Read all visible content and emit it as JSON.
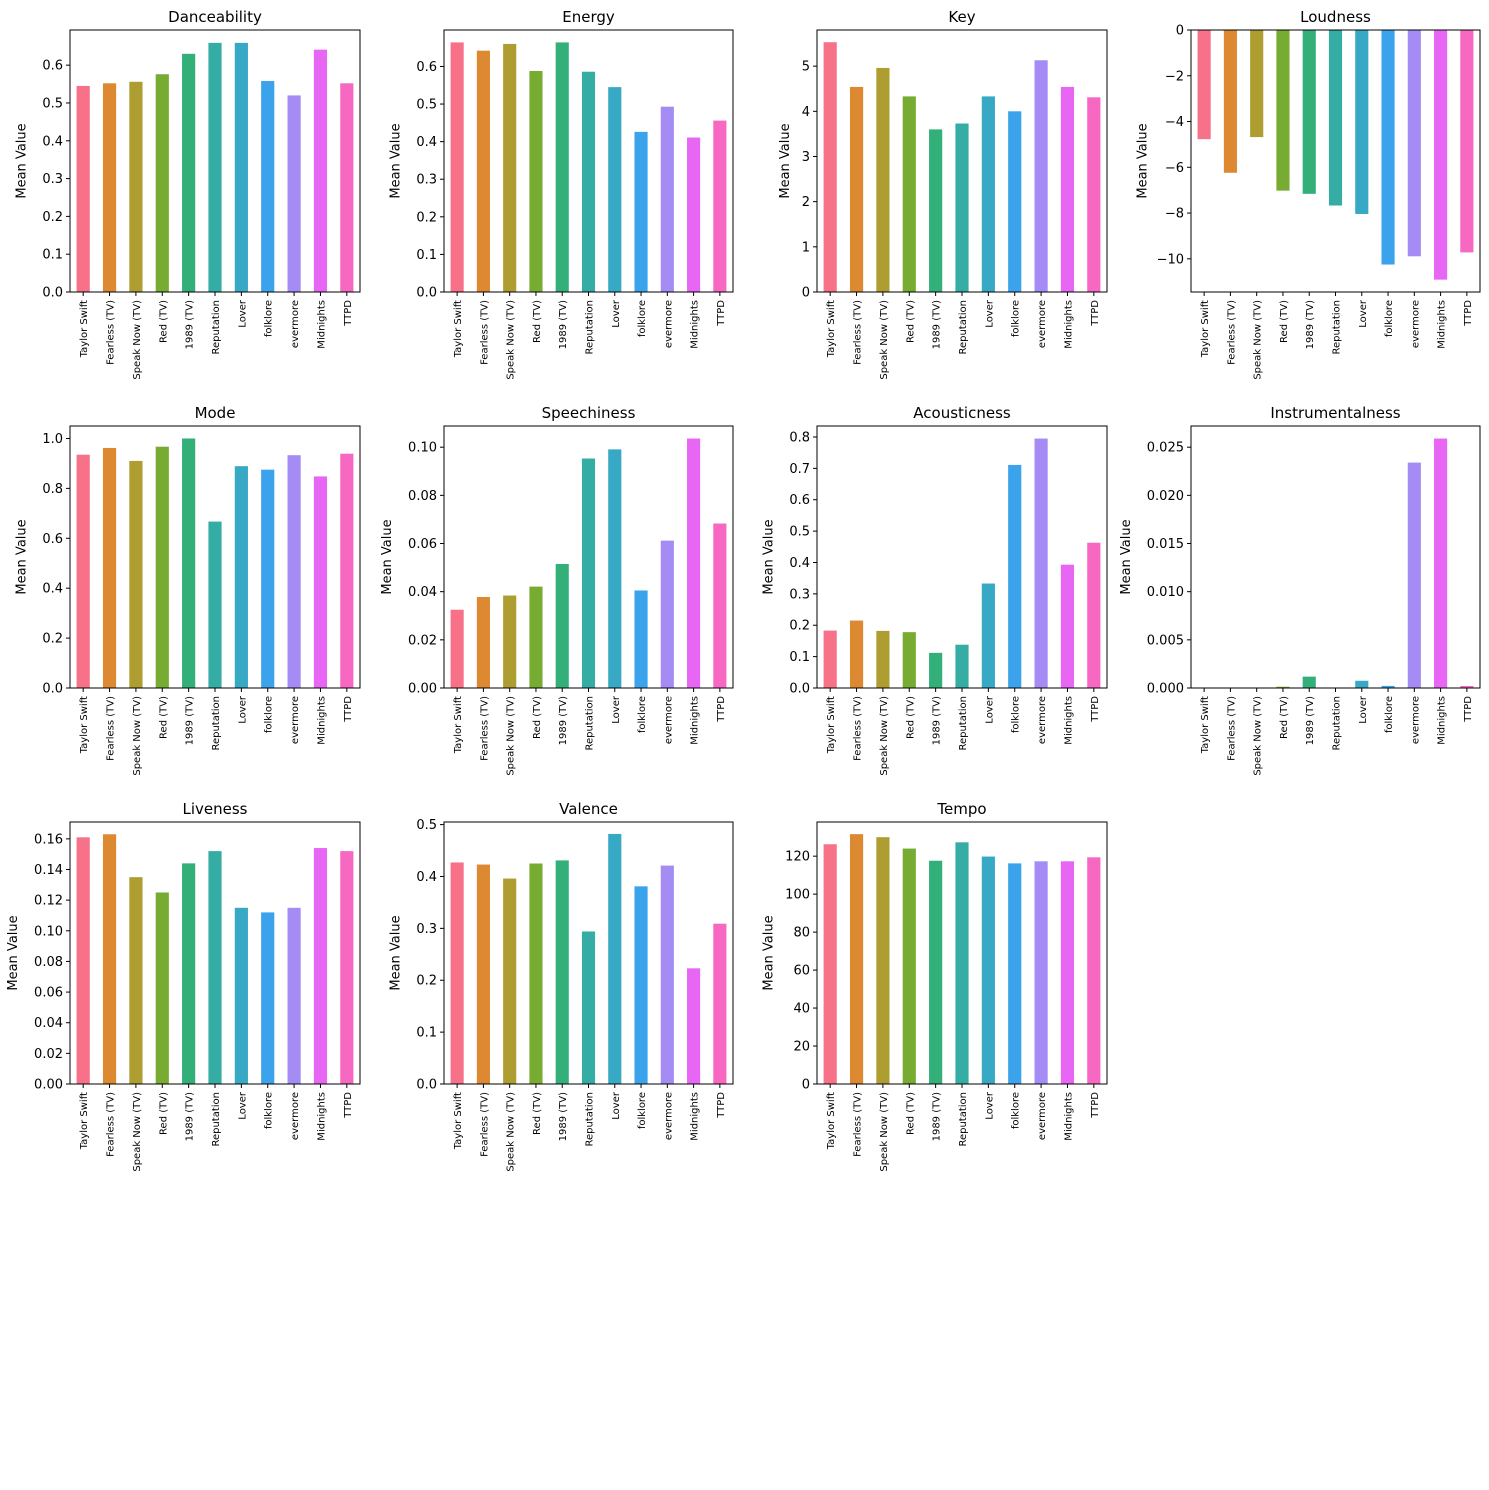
{
  "colors": [
    "#f77189",
    "#dc8932",
    "#ae9d31",
    "#77ab31",
    "#33b07a",
    "#36ada4",
    "#38a9c5",
    "#3ba3ec",
    "#a48cf4",
    "#e866f4",
    "#f668c2"
  ],
  "chart_data": [
    {
      "type": "bar",
      "title": "Danceability",
      "ylabel": "Mean Value",
      "categories": [
        "Taylor Swift",
        "Fearless (TV)",
        "Speak Now (TV)",
        "Red (TV)",
        "1989 (TV)",
        "Reputation",
        "Lover",
        "folklore",
        "evermore",
        "Midnights",
        "TTPD"
      ],
      "values": [
        0.545,
        0.552,
        0.556,
        0.576,
        0.63,
        0.659,
        0.659,
        0.558,
        0.52,
        0.641,
        0.552
      ],
      "ylim": [
        0,
        0.693
      ],
      "yticks": [
        0,
        0.1,
        0.2,
        0.3,
        0.4,
        0.5,
        0.6
      ],
      "ytick_labels": [
        "0.0",
        "0.1",
        "0.2",
        "0.3",
        "0.4",
        "0.5",
        "0.6"
      ]
    },
    {
      "type": "bar",
      "title": "Energy",
      "ylabel": "Mean Value",
      "categories": [
        "Taylor Swift",
        "Fearless (TV)",
        "Speak Now (TV)",
        "Red (TV)",
        "1989 (TV)",
        "Reputation",
        "Lover",
        "folklore",
        "evermore",
        "Midnights",
        "TTPD"
      ],
      "values": [
        0.664,
        0.642,
        0.66,
        0.588,
        0.664,
        0.586,
        0.545,
        0.426,
        0.493,
        0.411,
        0.456
      ],
      "ylim": [
        0,
        0.697
      ],
      "yticks": [
        0,
        0.1,
        0.2,
        0.3,
        0.4,
        0.5,
        0.6
      ],
      "ytick_labels": [
        "0.0",
        "0.1",
        "0.2",
        "0.3",
        "0.4",
        "0.5",
        "0.6"
      ]
    },
    {
      "type": "bar",
      "title": "Key",
      "ylabel": "Mean Value",
      "categories": [
        "Taylor Swift",
        "Fearless (TV)",
        "Speak Now (TV)",
        "Red (TV)",
        "1989 (TV)",
        "Reputation",
        "Lover",
        "folklore",
        "evermore",
        "Midnights",
        "TTPD"
      ],
      "values": [
        5.53,
        4.54,
        4.96,
        4.33,
        3.6,
        3.73,
        4.33,
        4.0,
        5.13,
        4.54,
        4.31
      ],
      "ylim": [
        0,
        5.8
      ],
      "yticks": [
        0,
        1,
        2,
        3,
        4,
        5
      ],
      "ytick_labels": [
        "0",
        "1",
        "2",
        "3",
        "4",
        "5"
      ]
    },
    {
      "type": "bar",
      "title": "Loudness",
      "ylabel": "Mean Value",
      "categories": [
        "Taylor Swift",
        "Fearless (TV)",
        "Speak Now (TV)",
        "Red (TV)",
        "1989 (TV)",
        "Reputation",
        "Lover",
        "folklore",
        "evermore",
        "Midnights",
        "TTPD"
      ],
      "values": [
        -4.77,
        -6.24,
        -4.68,
        -7.02,
        -7.16,
        -7.67,
        -8.04,
        -10.25,
        -9.89,
        -10.91,
        -9.72
      ],
      "ylim": [
        -11.45,
        0
      ],
      "yticks": [
        -10,
        -8,
        -6,
        -4,
        -2,
        0
      ],
      "ytick_labels": [
        "−10",
        "−8",
        "−6",
        "−4",
        "−2",
        "0"
      ]
    },
    {
      "type": "bar",
      "title": "Mode",
      "ylabel": "Mean Value",
      "categories": [
        "Taylor Swift",
        "Fearless (TV)",
        "Speak Now (TV)",
        "Red (TV)",
        "1989 (TV)",
        "Reputation",
        "Lover",
        "folklore",
        "evermore",
        "Midnights",
        "TTPD"
      ],
      "values": [
        0.935,
        0.962,
        0.91,
        0.967,
        1.0,
        0.667,
        0.889,
        0.875,
        0.933,
        0.848,
        0.939
      ],
      "ylim": [
        0,
        1.05
      ],
      "yticks": [
        0,
        0.2,
        0.4,
        0.6,
        0.8,
        1.0
      ],
      "ytick_labels": [
        "0.0",
        "0.2",
        "0.4",
        "0.6",
        "0.8",
        "1.0"
      ]
    },
    {
      "type": "bar",
      "title": "Speechiness",
      "ylabel": "Mean Value",
      "categories": [
        "Taylor Swift",
        "Fearless (TV)",
        "Speak Now (TV)",
        "Red (TV)",
        "1989 (TV)",
        "Reputation",
        "Lover",
        "folklore",
        "evermore",
        "Midnights",
        "TTPD"
      ],
      "values": [
        0.0325,
        0.0378,
        0.0384,
        0.0421,
        0.0515,
        0.0953,
        0.0991,
        0.0405,
        0.0612,
        0.1036,
        0.0683
      ],
      "ylim": [
        0,
        0.1088
      ],
      "yticks": [
        0,
        0.02,
        0.04,
        0.06,
        0.08,
        0.1
      ],
      "ytick_labels": [
        "0.00",
        "0.02",
        "0.04",
        "0.06",
        "0.08",
        "0.10"
      ]
    },
    {
      "type": "bar",
      "title": "Acousticness",
      "ylabel": "Mean Value",
      "categories": [
        "Taylor Swift",
        "Fearless (TV)",
        "Speak Now (TV)",
        "Red (TV)",
        "1989 (TV)",
        "Reputation",
        "Lover",
        "folklore",
        "evermore",
        "Midnights",
        "TTPD"
      ],
      "values": [
        0.183,
        0.215,
        0.182,
        0.178,
        0.112,
        0.138,
        0.333,
        0.711,
        0.795,
        0.393,
        0.463
      ],
      "ylim": [
        0,
        0.835
      ],
      "yticks": [
        0,
        0.1,
        0.2,
        0.3,
        0.4,
        0.5,
        0.6,
        0.7,
        0.8
      ],
      "ytick_labels": [
        "0.0",
        "0.1",
        "0.2",
        "0.3",
        "0.4",
        "0.5",
        "0.6",
        "0.7",
        "0.8"
      ]
    },
    {
      "type": "bar",
      "title": "Instrumentalness",
      "ylabel": "Mean Value",
      "categories": [
        "Taylor Swift",
        "Fearless (TV)",
        "Speak Now (TV)",
        "Red (TV)",
        "1989 (TV)",
        "Reputation",
        "Lover",
        "folklore",
        "evermore",
        "Midnights",
        "TTPD"
      ],
      "values": [
        1e-05,
        2e-05,
        2e-05,
        0.00013,
        0.00118,
        2e-05,
        0.00075,
        0.00022,
        0.0234,
        0.0259,
        0.00021
      ],
      "ylim": [
        0,
        0.0272
      ],
      "yticks": [
        0,
        0.005,
        0.01,
        0.015,
        0.02,
        0.025
      ],
      "ytick_labels": [
        "0.000",
        "0.005",
        "0.010",
        "0.015",
        "0.020",
        "0.025"
      ]
    },
    {
      "type": "bar",
      "title": "Liveness",
      "ylabel": "Mean Value",
      "categories": [
        "Taylor Swift",
        "Fearless (TV)",
        "Speak Now (TV)",
        "Red (TV)",
        "1989 (TV)",
        "Reputation",
        "Lover",
        "folklore",
        "evermore",
        "Midnights",
        "TTPD"
      ],
      "values": [
        0.161,
        0.163,
        0.135,
        0.125,
        0.144,
        0.152,
        0.115,
        0.112,
        0.115,
        0.154,
        0.152
      ],
      "ylim": [
        0,
        0.171
      ],
      "yticks": [
        0,
        0.02,
        0.04,
        0.06,
        0.08,
        0.1,
        0.12,
        0.14,
        0.16
      ],
      "ytick_labels": [
        "0.00",
        "0.02",
        "0.04",
        "0.06",
        "0.08",
        "0.10",
        "0.12",
        "0.14",
        "0.16"
      ]
    },
    {
      "type": "bar",
      "title": "Valence",
      "ylabel": "Mean Value",
      "categories": [
        "Taylor Swift",
        "Fearless (TV)",
        "Speak Now (TV)",
        "Red (TV)",
        "1989 (TV)",
        "Reputation",
        "Lover",
        "folklore",
        "evermore",
        "Midnights",
        "TTPD"
      ],
      "values": [
        0.427,
        0.423,
        0.396,
        0.425,
        0.431,
        0.294,
        0.482,
        0.381,
        0.421,
        0.223,
        0.309
      ],
      "ylim": [
        0,
        0.505
      ],
      "yticks": [
        0,
        0.1,
        0.2,
        0.3,
        0.4,
        0.5
      ],
      "ytick_labels": [
        "0.0",
        "0.1",
        "0.2",
        "0.3",
        "0.4",
        "0.5"
      ]
    },
    {
      "type": "bar",
      "title": "Tempo",
      "ylabel": "Mean Value",
      "categories": [
        "Taylor Swift",
        "Fearless (TV)",
        "Speak Now (TV)",
        "Red (TV)",
        "1989 (TV)",
        "Reputation",
        "Lover",
        "folklore",
        "evermore",
        "Midnights",
        "TTPD"
      ],
      "values": [
        126.3,
        131.6,
        130.0,
        124.0,
        117.6,
        127.3,
        119.8,
        116.2,
        117.3,
        117.3,
        119.4
      ],
      "ylim": [
        0,
        138.0
      ],
      "yticks": [
        0,
        20,
        40,
        60,
        80,
        100,
        120
      ],
      "ytick_labels": [
        "0",
        "20",
        "40",
        "60",
        "80",
        "100",
        "120"
      ]
    }
  ]
}
